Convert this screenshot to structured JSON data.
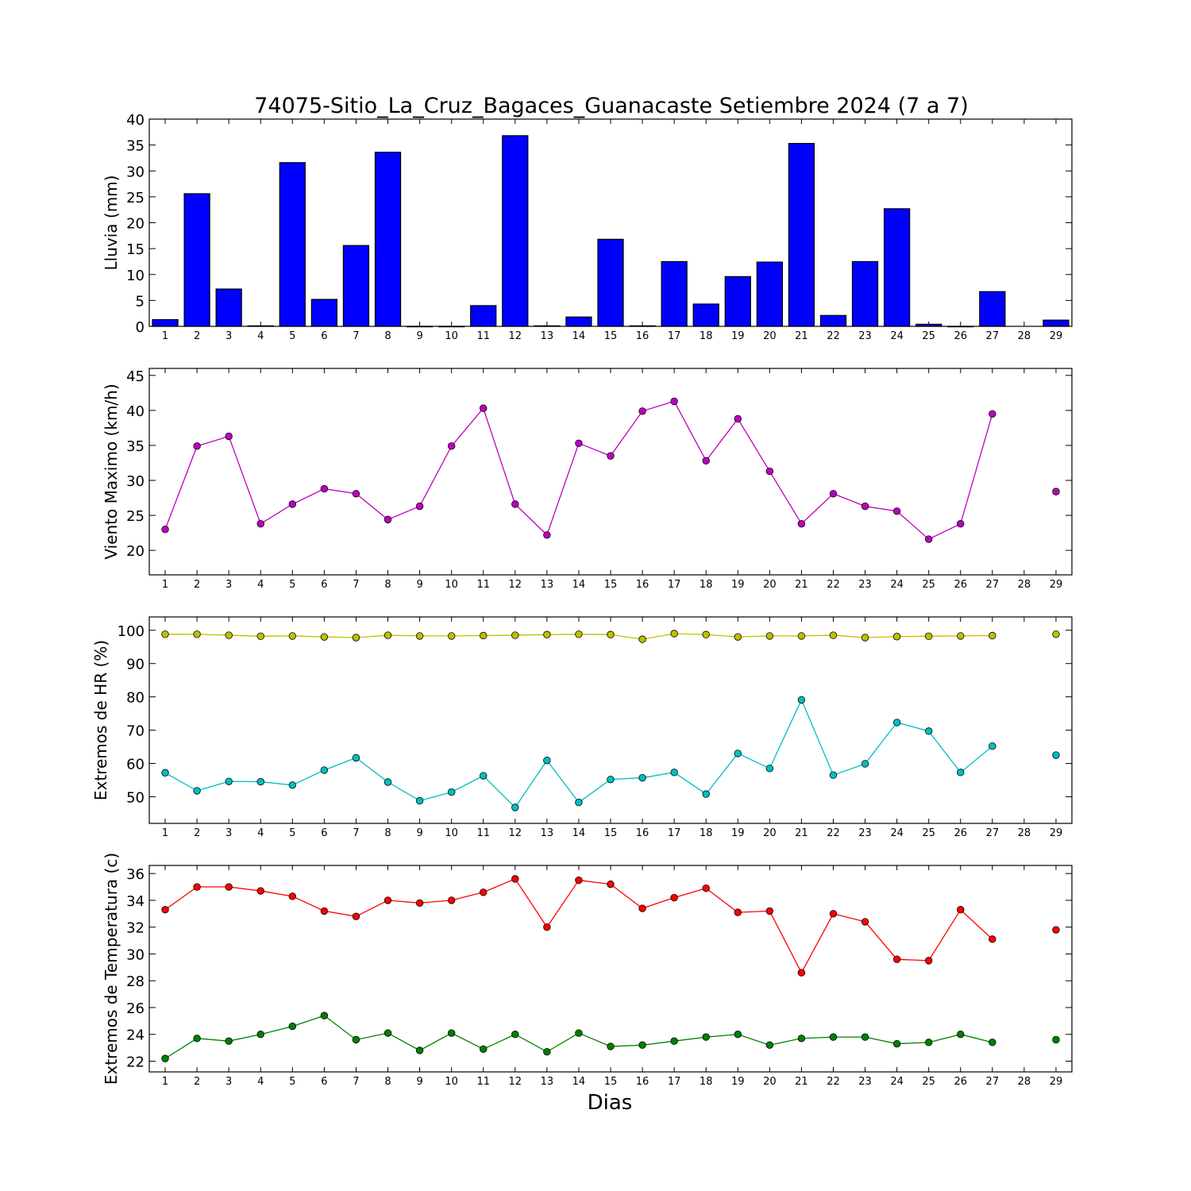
{
  "chart_data": [
    {
      "type": "bar",
      "title": "74075-Sitio_La_Cruz_Bagaces_Guanacaste Setiembre 2024  (7 a 7)",
      "ylabel": "Lluvia (mm)",
      "xlabel": "",
      "ylim": [
        0,
        40
      ],
      "yticks": [
        "0",
        "5",
        "10",
        "15",
        "20",
        "25",
        "30",
        "35",
        "40"
      ],
      "categories": [
        "1",
        "2",
        "3",
        "4",
        "5",
        "6",
        "7",
        "8",
        "9",
        "10",
        "11",
        "12",
        "13",
        "14",
        "15",
        "16",
        "17",
        "18",
        "19",
        "20",
        "21",
        "22",
        "23",
        "24",
        "25",
        "26",
        "27",
        "28",
        "29"
      ],
      "series": [
        {
          "color": "#0000ff",
          "values": [
            1.3,
            25.6,
            7.2,
            0.1,
            31.6,
            5.2,
            15.6,
            33.6,
            0.0,
            0.0,
            4.0,
            36.8,
            0.1,
            1.8,
            16.8,
            0.1,
            12.5,
            4.3,
            9.6,
            12.4,
            35.3,
            2.1,
            12.5,
            22.7,
            0.4,
            0.0,
            6.7,
            null,
            1.2
          ]
        }
      ],
      "grid": false
    },
    {
      "type": "line",
      "title": "",
      "ylabel": "Viento Maximo (km/h)",
      "xlabel": "",
      "ylim": [
        16.5,
        46
      ],
      "yticks": [
        "20",
        "25",
        "30",
        "35",
        "40",
        "45"
      ],
      "categories": [
        "1",
        "2",
        "3",
        "4",
        "5",
        "6",
        "7",
        "8",
        "9",
        "10",
        "11",
        "12",
        "13",
        "14",
        "15",
        "16",
        "17",
        "18",
        "19",
        "20",
        "21",
        "22",
        "23",
        "24",
        "25",
        "26",
        "27",
        "28",
        "29"
      ],
      "series": [
        {
          "color": "#bf00bf",
          "values": [
            23.0,
            34.9,
            36.3,
            23.8,
            26.6,
            28.8,
            28.1,
            24.4,
            26.3,
            34.9,
            40.3,
            26.6,
            22.2,
            35.3,
            33.5,
            39.9,
            41.3,
            32.8,
            38.8,
            31.3,
            23.8,
            28.1,
            26.3,
            25.6,
            21.6,
            23.8,
            39.5,
            null,
            28.4
          ]
        }
      ],
      "grid": false
    },
    {
      "type": "line",
      "title": "",
      "ylabel": "Extremos de HR (%)",
      "xlabel": "",
      "ylim": [
        42,
        104
      ],
      "yticks": [
        "50",
        "60",
        "70",
        "80",
        "90",
        "100"
      ],
      "categories": [
        "1",
        "2",
        "3",
        "4",
        "5",
        "6",
        "7",
        "8",
        "9",
        "10",
        "11",
        "12",
        "13",
        "14",
        "15",
        "16",
        "17",
        "18",
        "19",
        "20",
        "21",
        "22",
        "23",
        "24",
        "25",
        "26",
        "27",
        "28",
        "29"
      ],
      "series": [
        {
          "color": "#bfbf00",
          "values": [
            98.8,
            98.8,
            98.5,
            98.2,
            98.3,
            98.0,
            97.8,
            98.5,
            98.3,
            98.3,
            98.4,
            98.5,
            98.7,
            98.8,
            98.7,
            97.3,
            99.0,
            98.7,
            98.0,
            98.3,
            98.3,
            98.5,
            97.8,
            98.1,
            98.2,
            98.3,
            98.4,
            null,
            98.8
          ]
        },
        {
          "color": "#00bfbf",
          "values": [
            57.2,
            51.8,
            54.6,
            54.5,
            53.5,
            58.0,
            61.7,
            54.4,
            48.8,
            51.4,
            56.3,
            46.8,
            60.9,
            48.3,
            55.2,
            55.7,
            57.3,
            50.8,
            63.0,
            58.5,
            79.1,
            56.5,
            59.9,
            72.3,
            69.7,
            57.3,
            65.2,
            null,
            62.5
          ]
        }
      ],
      "grid": false
    },
    {
      "type": "line",
      "title": "",
      "ylabel": "Extremos de Temperatura (c)",
      "xlabel": "Dias",
      "ylim": [
        21.2,
        36.6
      ],
      "yticks": [
        "22",
        "24",
        "26",
        "28",
        "30",
        "32",
        "34",
        "36"
      ],
      "categories": [
        "1",
        "2",
        "3",
        "4",
        "5",
        "6",
        "7",
        "8",
        "9",
        "10",
        "11",
        "12",
        "13",
        "14",
        "15",
        "16",
        "17",
        "18",
        "19",
        "20",
        "21",
        "22",
        "23",
        "24",
        "25",
        "26",
        "27",
        "28",
        "29"
      ],
      "series": [
        {
          "color": "#ff0000",
          "values": [
            33.3,
            35.0,
            35.0,
            34.7,
            34.3,
            33.2,
            32.8,
            34.0,
            33.8,
            34.0,
            34.6,
            35.6,
            32.0,
            35.5,
            35.2,
            33.4,
            34.2,
            34.9,
            33.1,
            33.2,
            28.6,
            33.0,
            32.4,
            29.6,
            29.5,
            33.3,
            31.1,
            null,
            31.8
          ]
        },
        {
          "color": "#008000",
          "values": [
            22.2,
            23.7,
            23.5,
            24.0,
            24.6,
            25.4,
            23.6,
            24.1,
            22.8,
            24.1,
            22.9,
            24.0,
            22.7,
            24.1,
            23.1,
            23.2,
            23.5,
            23.8,
            24.0,
            23.2,
            23.7,
            23.8,
            23.8,
            23.3,
            23.4,
            24.0,
            23.4,
            null,
            23.6
          ]
        }
      ],
      "grid": false
    }
  ]
}
